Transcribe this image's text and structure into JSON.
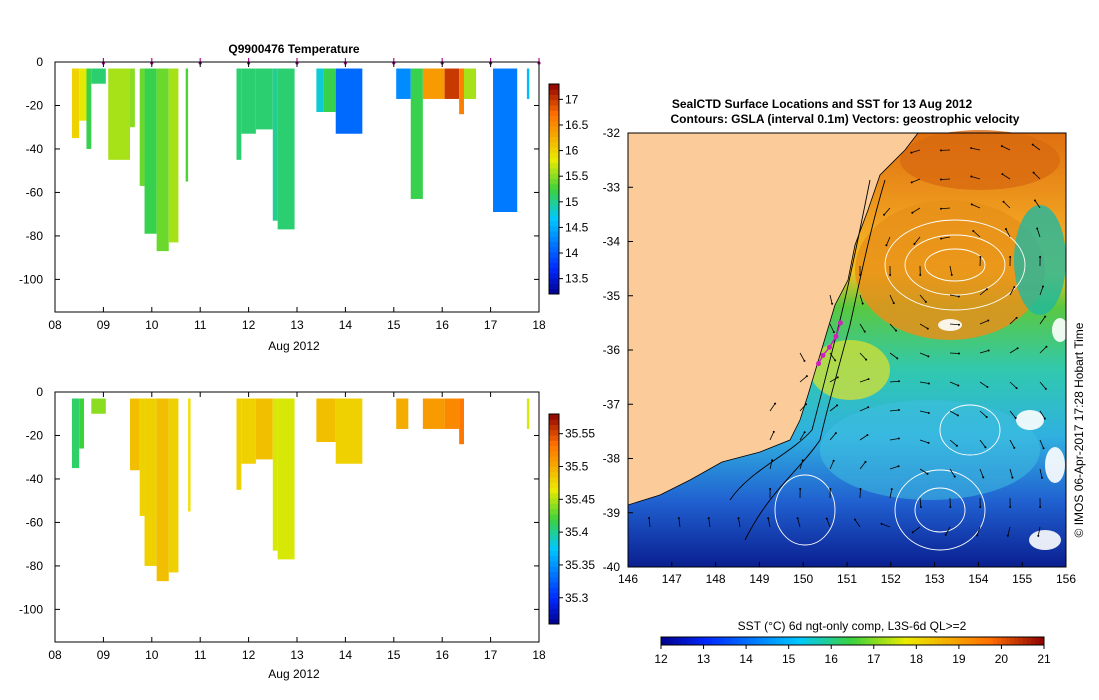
{
  "chart_data": [
    {
      "type": "heatmap",
      "title": "Q9900476  Temperature",
      "xlabel": "Aug 2012",
      "ylabel": "",
      "xticks": [
        "08",
        "09",
        "10",
        "11",
        "12",
        "13",
        "14",
        "15",
        "16",
        "17",
        "18"
      ],
      "xlim": [
        8,
        18
      ],
      "ylim": [
        -115,
        0
      ],
      "yticks": [
        0,
        -20,
        -40,
        -60,
        -80,
        -100
      ],
      "colorbar": {
        "ticks": [
          "13.5",
          "14",
          "14.5",
          "15",
          "15.5",
          "16",
          "16.5",
          "17"
        ],
        "range": [
          13.2,
          17.3
        ]
      },
      "profile_dates": [
        9,
        10,
        11,
        12,
        13,
        14,
        15,
        16,
        17,
        18
      ],
      "profiles": [
        {
          "x0": 8.35,
          "x1": 8.5,
          "depth": 35,
          "value": 16.0
        },
        {
          "x0": 8.5,
          "x1": 8.65,
          "depth": 27,
          "value": 15.8
        },
        {
          "x0": 8.65,
          "x1": 8.75,
          "depth": 40,
          "value": 15.2
        },
        {
          "x0": 8.75,
          "x1": 9.05,
          "depth": 10,
          "value": 15.1
        },
        {
          "x0": 9.1,
          "x1": 9.55,
          "depth": 45,
          "value": 15.6
        },
        {
          "x0": 9.55,
          "x1": 9.65,
          "depth": 30,
          "value": 15.5
        },
        {
          "x0": 9.75,
          "x1": 9.85,
          "depth": 57,
          "value": 15.4
        },
        {
          "x0": 9.85,
          "x1": 10.1,
          "depth": 79,
          "value": 15.2
        },
        {
          "x0": 10.1,
          "x1": 10.35,
          "depth": 87,
          "value": 15.4
        },
        {
          "x0": 10.35,
          "x1": 10.55,
          "depth": 83,
          "value": 15.6
        },
        {
          "x0": 10.7,
          "x1": 10.75,
          "depth": 55,
          "value": 15.3
        },
        {
          "x0": 11.75,
          "x1": 11.85,
          "depth": 45,
          "value": 15.1
        },
        {
          "x0": 11.85,
          "x1": 12.15,
          "depth": 33,
          "value": 15.1
        },
        {
          "x0": 12.15,
          "x1": 12.5,
          "depth": 31,
          "value": 15.1
        },
        {
          "x0": 12.5,
          "x1": 12.6,
          "depth": 73,
          "value": 15.0
        },
        {
          "x0": 12.6,
          "x1": 12.95,
          "depth": 77,
          "value": 15.1
        },
        {
          "x0": 13.4,
          "x1": 13.55,
          "depth": 23,
          "value": 14.8
        },
        {
          "x0": 13.55,
          "x1": 13.8,
          "depth": 23,
          "value": 15.2
        },
        {
          "x0": 13.8,
          "x1": 14.35,
          "depth": 33,
          "value": 14.1
        },
        {
          "x0": 15.05,
          "x1": 15.35,
          "depth": 17,
          "value": 14.3
        },
        {
          "x0": 15.35,
          "x1": 15.6,
          "depth": 63,
          "value": 15.2
        },
        {
          "x0": 15.6,
          "x1": 16.05,
          "depth": 17,
          "value": 16.4
        },
        {
          "x0": 16.05,
          "x1": 16.35,
          "depth": 17,
          "value": 17.0
        },
        {
          "x0": 16.35,
          "x1": 16.45,
          "depth": 24,
          "value": 16.6
        },
        {
          "x0": 16.45,
          "x1": 16.7,
          "depth": 17,
          "value": 15.6
        },
        {
          "x0": 17.05,
          "x1": 17.55,
          "depth": 69,
          "value": 14.2
        },
        {
          "x0": 17.75,
          "x1": 17.8,
          "depth": 17,
          "value": 14.6
        }
      ]
    },
    {
      "type": "heatmap",
      "title": "",
      "xlabel": "Aug 2012",
      "ylabel": "",
      "xticks": [
        "08",
        "09",
        "10",
        "11",
        "12",
        "13",
        "14",
        "15",
        "16",
        "17",
        "18"
      ],
      "xlim": [
        8,
        18
      ],
      "ylim": [
        -115,
        0
      ],
      "yticks": [
        0,
        -20,
        -40,
        -60,
        -80,
        -100
      ],
      "colorbar": {
        "ticks": [
          "35.3",
          "35.35",
          "35.4",
          "35.45",
          "35.5",
          "35.55"
        ],
        "range": [
          35.26,
          35.58
        ]
      },
      "profiles": [
        {
          "x0": 8.35,
          "x1": 8.5,
          "depth": 35,
          "value": 35.41
        },
        {
          "x0": 8.5,
          "x1": 8.6,
          "depth": 26,
          "value": 35.42
        },
        {
          "x0": 8.75,
          "x1": 9.05,
          "depth": 10,
          "value": 35.44
        },
        {
          "x0": 9.55,
          "x1": 9.75,
          "depth": 36,
          "value": 35.49
        },
        {
          "x0": 9.75,
          "x1": 9.85,
          "depth": 57,
          "value": 35.48
        },
        {
          "x0": 9.85,
          "x1": 10.1,
          "depth": 80,
          "value": 35.48
        },
        {
          "x0": 10.1,
          "x1": 10.35,
          "depth": 87,
          "value": 35.49
        },
        {
          "x0": 10.35,
          "x1": 10.55,
          "depth": 83,
          "value": 35.48
        },
        {
          "x0": 10.75,
          "x1": 10.8,
          "depth": 55,
          "value": 35.47
        },
        {
          "x0": 11.75,
          "x1": 11.85,
          "depth": 45,
          "value": 35.48
        },
        {
          "x0": 11.85,
          "x1": 12.15,
          "depth": 33,
          "value": 35.48
        },
        {
          "x0": 12.15,
          "x1": 12.5,
          "depth": 31,
          "value": 35.49
        },
        {
          "x0": 12.5,
          "x1": 12.6,
          "depth": 73,
          "value": 35.46
        },
        {
          "x0": 12.6,
          "x1": 12.95,
          "depth": 77,
          "value": 35.46
        },
        {
          "x0": 13.4,
          "x1": 13.8,
          "depth": 23,
          "value": 35.49
        },
        {
          "x0": 13.8,
          "x1": 14.35,
          "depth": 33,
          "value": 35.48
        },
        {
          "x0": 15.05,
          "x1": 15.3,
          "depth": 17,
          "value": 35.5
        },
        {
          "x0": 15.6,
          "x1": 16.05,
          "depth": 17,
          "value": 35.51
        },
        {
          "x0": 16.05,
          "x1": 16.35,
          "depth": 17,
          "value": 35.52
        },
        {
          "x0": 16.35,
          "x1": 16.45,
          "depth": 24,
          "value": 35.53
        },
        {
          "x0": 17.75,
          "x1": 17.8,
          "depth": 17,
          "value": 35.46
        }
      ]
    },
    {
      "type": "heatmap",
      "title": "SealCTD Surface Locations and SST for 13 Aug 2012",
      "subtitle": "Contours: GSLA (interval 0.1m) Vectors: geostrophic velocity",
      "xlim": [
        146,
        156
      ],
      "ylim": [
        -40,
        -32
      ],
      "xticks": [
        "146",
        "147",
        "148",
        "149",
        "150",
        "151",
        "152",
        "153",
        "154",
        "155",
        "156"
      ],
      "yticks": [
        "-32",
        "-33",
        "-34",
        "-35",
        "-36",
        "-37",
        "-38",
        "-39",
        "-40"
      ],
      "colorbar": {
        "label": "SST (°C) 6d ngt-only comp, L3S-6d QL>=2",
        "ticks": [
          "12",
          "13",
          "14",
          "15",
          "16",
          "17",
          "18",
          "19",
          "20",
          "21"
        ],
        "range": [
          12,
          21
        ]
      },
      "seal_track": [
        {
          "lon": 150.85,
          "lat": -35.5
        },
        {
          "lon": 150.75,
          "lat": -35.75
        },
        {
          "lon": 150.6,
          "lat": -35.95
        },
        {
          "lon": 150.45,
          "lat": -36.1
        },
        {
          "lon": 150.35,
          "lat": -36.25
        }
      ],
      "credit": "© IMOS 06-Apr-2017 17:28 Hobart Time"
    }
  ]
}
